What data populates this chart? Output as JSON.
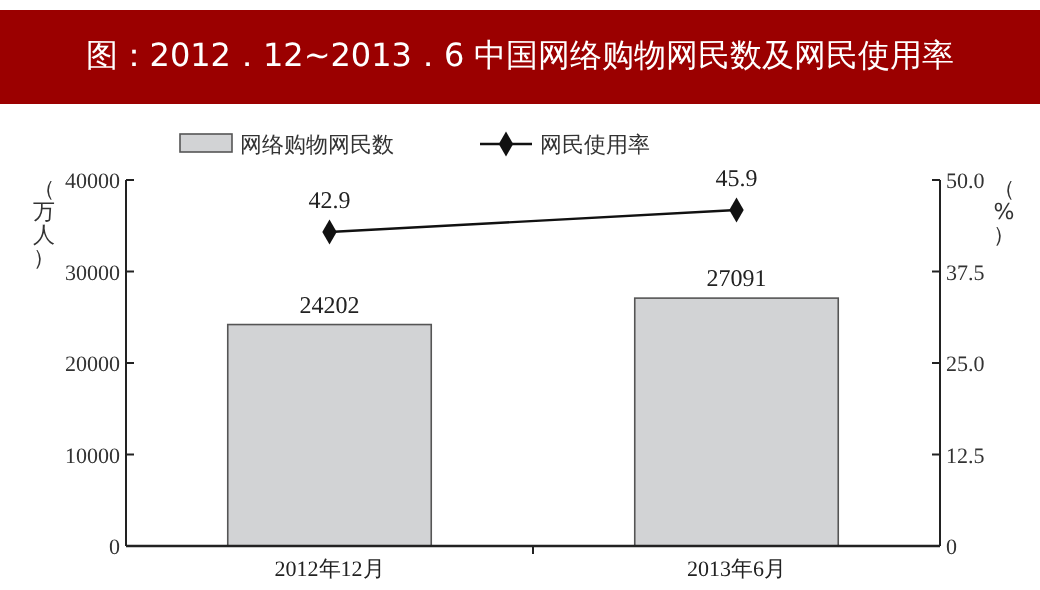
{
  "chart_data": {
    "type": "bar",
    "title": "图：2012．12~2013．6 中国网络购物网民数及网民使用率",
    "ylabel": "（万人）",
    "y2label": "（%）",
    "categories": [
      "2012年12月",
      "2013年6月"
    ],
    "series": [
      {
        "name": "网络购物网民数",
        "color": "#d2d3d5",
        "values": [
          24202,
          27091
        ]
      },
      {
        "name": "网民使用率",
        "type": "line",
        "axis": "y2",
        "color": "#111111",
        "values": [
          42.9,
          45.9
        ],
        "marker": "diamond"
      }
    ],
    "data_labels": true,
    "ylim": [
      0,
      40000
    ],
    "yticks": [
      0,
      10000,
      20000,
      30000,
      40000
    ],
    "y2lim": [
      0,
      50
    ],
    "y2ticks": [
      0,
      {
        "value": 12.5,
        "label": "12.5"
      },
      {
        "value": 25,
        "label": "25.0"
      },
      {
        "value": 37.5,
        "label": "37.5"
      },
      {
        "value": 50,
        "label": "50.0"
      }
    ],
    "grid": false,
    "legend": "top"
  }
}
